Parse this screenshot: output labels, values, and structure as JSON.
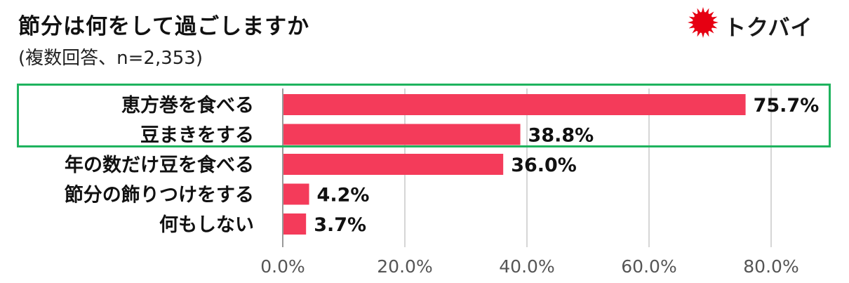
{
  "title": "節分は何をして過ごしますか",
  "subtitle": "(複数回答、n=2,353)",
  "logo": {
    "text": "トクバイ",
    "icon": "red-sun-icon",
    "color": "#e60012"
  },
  "colors": {
    "bar": "#f43b5a",
    "grid": "#c8c8c8",
    "highlight": "#1fb35e"
  },
  "chart_data": {
    "type": "bar",
    "orientation": "horizontal",
    "categories": [
      "恵方巻を食べる",
      "豆まきをする",
      "年の数だけ豆を食べる",
      "節分の飾りつけをする",
      "何もしない"
    ],
    "values": [
      75.7,
      38.8,
      36.0,
      4.2,
      3.7
    ],
    "value_labels": [
      "75.7%",
      "38.8%",
      "36.0%",
      "4.2%",
      "3.7%"
    ],
    "xlim": [
      0,
      80
    ],
    "xticks": [
      0,
      20,
      40,
      60,
      80
    ],
    "xtick_labels": [
      "0.0%",
      "20.0%",
      "40.0%",
      "60.0%",
      "80.0%"
    ],
    "grid": true,
    "highlighted_categories": [
      "恵方巻を食べる",
      "豆まきをする"
    ]
  }
}
